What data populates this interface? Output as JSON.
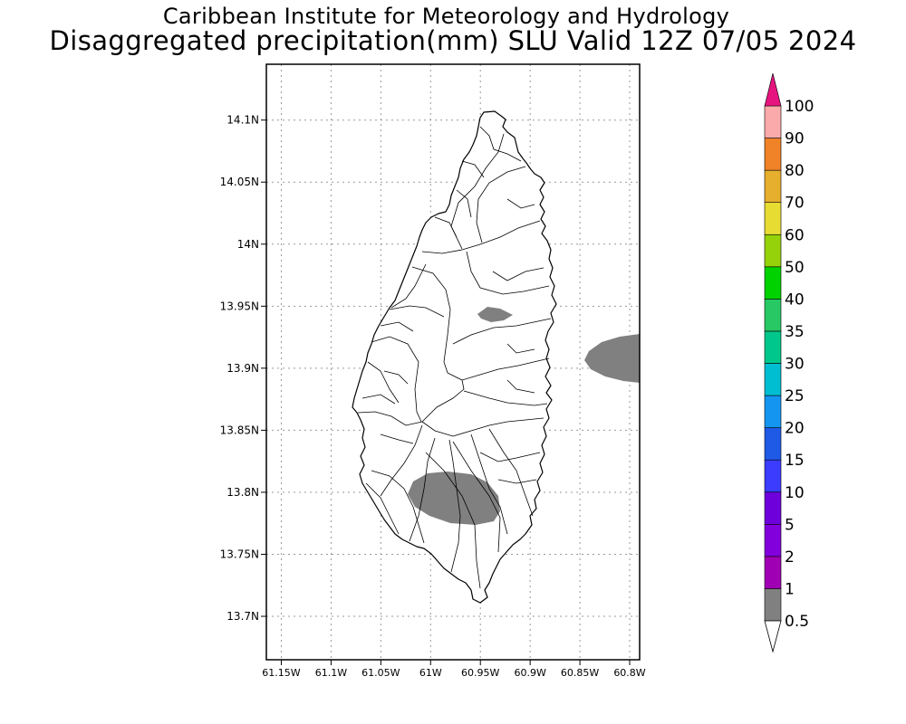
{
  "header": {
    "title": "Caribbean Institute for Meteorology and Hydrology",
    "subtitle": "Disaggregated precipitation(mm) SLU Valid 12Z 07/05 2024"
  },
  "map": {
    "lat_ticks": [
      "14.1N",
      "14.05N",
      "14N",
      "13.95N",
      "13.9N",
      "13.85N",
      "13.8N",
      "13.75N",
      "13.7N"
    ],
    "lat_values": [
      14.1,
      14.05,
      14.0,
      13.95,
      13.9,
      13.85,
      13.8,
      13.75,
      13.7
    ],
    "lon_ticks": [
      "61.15W",
      "61.1W",
      "61.05W",
      "61W",
      "60.95W",
      "60.9W",
      "60.85W",
      "60.8W"
    ],
    "lon_values": [
      -61.15,
      -61.1,
      -61.05,
      -61.0,
      -60.95,
      -60.9,
      -60.85,
      -60.8
    ],
    "lon_range": [
      -61.165,
      -60.79
    ],
    "lat_range": [
      13.665,
      14.145
    ],
    "grid": "dotted",
    "island": "Saint Lucia",
    "precip_color": "#808080",
    "precip_class": "0.5-1"
  },
  "colorbar": {
    "labels": [
      "0.5",
      "1",
      "2",
      "5",
      "10",
      "15",
      "20",
      "25",
      "30",
      "35",
      "40",
      "50",
      "60",
      "70",
      "80",
      "90",
      "100"
    ],
    "colors": [
      "#808080",
      "#a000b4",
      "#8200dc",
      "#6e00dc",
      "#3c3cff",
      "#1e5ae6",
      "#1496f0",
      "#00bed2",
      "#00c88c",
      "#28c864",
      "#00d200",
      "#96d20a",
      "#e6dc32",
      "#e6af2d",
      "#f08228",
      "#faaaaa",
      "#f00000",
      "#f04646"
    ],
    "low_cap_color": "#ffffff",
    "high_cap_color": "#e6147f"
  }
}
